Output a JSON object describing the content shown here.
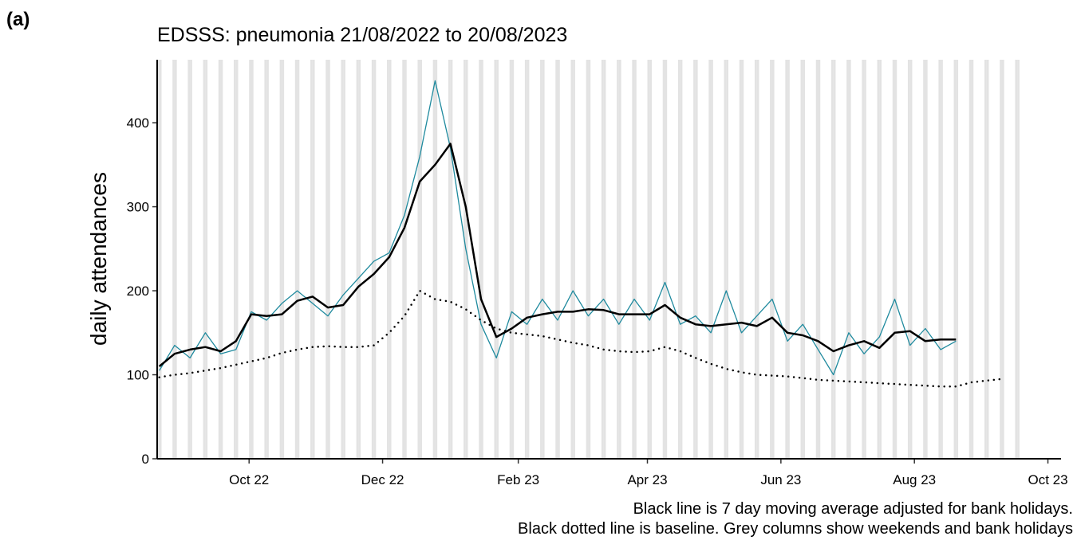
{
  "panel_label": "(a)",
  "chart_data": {
    "type": "line",
    "title": "EDSSS: pneumonia 21/08/2022 to 20/08/2023",
    "y_label": "daily attendances",
    "annotations": [
      "Black line is 7 day moving average adjusted for bank holidays.",
      "Black dotted line is baseline. Grey columns show weekends and bank holidays"
    ],
    "x": [
      "2022-08-21",
      "2022-08-28",
      "2022-09-04",
      "2022-09-11",
      "2022-09-18",
      "2022-09-25",
      "2022-10-02",
      "2022-10-09",
      "2022-10-16",
      "2022-10-23",
      "2022-10-30",
      "2022-11-06",
      "2022-11-13",
      "2022-11-20",
      "2022-11-27",
      "2022-12-04",
      "2022-12-11",
      "2022-12-18",
      "2022-12-25",
      "2023-01-01",
      "2023-01-08",
      "2023-01-15",
      "2023-01-22",
      "2023-01-29",
      "2023-02-05",
      "2023-02-12",
      "2023-02-19",
      "2023-02-26",
      "2023-03-05",
      "2023-03-12",
      "2023-03-19",
      "2023-03-26",
      "2023-04-02",
      "2023-04-09",
      "2023-04-16",
      "2023-04-23",
      "2023-04-30",
      "2023-05-07",
      "2023-05-14",
      "2023-05-21",
      "2023-05-28",
      "2023-06-04",
      "2023-06-11",
      "2023-06-18",
      "2023-06-25",
      "2023-07-02",
      "2023-07-09",
      "2023-07-16",
      "2023-07-23",
      "2023-07-30",
      "2023-08-06",
      "2023-08-13",
      "2023-08-20",
      "2023-08-27",
      "2023-09-03",
      "2023-09-10"
    ],
    "series": [
      {
        "color": "#1f8a9e",
        "style": "solid",
        "width": 1.3,
        "values": [
          105,
          135,
          120,
          150,
          125,
          130,
          175,
          165,
          185,
          200,
          185,
          170,
          195,
          215,
          235,
          245,
          290,
          360,
          450,
          370,
          250,
          160,
          120,
          175,
          160,
          190,
          165,
          200,
          170,
          190,
          160,
          190,
          165,
          210,
          160,
          170,
          150,
          200,
          150,
          170,
          190,
          140,
          160,
          130,
          100,
          150,
          125,
          145,
          190,
          135,
          155,
          130,
          140,
          null,
          null,
          null
        ]
      },
      {
        "color": "#000000",
        "style": "solid",
        "width": 2.5,
        "values": [
          110,
          125,
          130,
          133,
          128,
          140,
          172,
          170,
          172,
          188,
          193,
          180,
          183,
          205,
          220,
          240,
          275,
          330,
          350,
          375,
          300,
          190,
          145,
          155,
          168,
          172,
          175,
          175,
          178,
          177,
          172,
          172,
          172,
          183,
          168,
          160,
          158,
          160,
          162,
          158,
          168,
          150,
          147,
          140,
          128,
          135,
          140,
          132,
          150,
          152,
          140,
          142,
          142,
          null,
          null,
          null
        ]
      },
      {
        "color": "#000000",
        "style": "dotted",
        "width": 2.5,
        "values": [
          97,
          100,
          102,
          105,
          108,
          112,
          116,
          120,
          126,
          130,
          133,
          134,
          133,
          133,
          135,
          150,
          170,
          200,
          190,
          187,
          178,
          165,
          155,
          150,
          148,
          146,
          142,
          138,
          135,
          130,
          128,
          127,
          128,
          133,
          128,
          120,
          113,
          107,
          103,
          100,
          99,
          98,
          96,
          94,
          93,
          92,
          91,
          90,
          89,
          88,
          87,
          86,
          86,
          91,
          93,
          95
        ]
      }
    ],
    "xlim": [
      "2022-08-20",
      "2023-10-07"
    ],
    "xticks": [
      {
        "value": "2022-10-01",
        "label": "Oct 22"
      },
      {
        "value": "2022-12-01",
        "label": "Dec 22"
      },
      {
        "value": "2023-02-01",
        "label": "Feb 23"
      },
      {
        "value": "2023-04-01",
        "label": "Apr 23"
      },
      {
        "value": "2023-06-01",
        "label": "Jun 23"
      },
      {
        "value": "2023-08-01",
        "label": "Aug 23"
      },
      {
        "value": "2023-10-01",
        "label": "Oct 23"
      }
    ],
    "ylim": [
      0,
      475
    ],
    "yticks": [
      0,
      100,
      200,
      300,
      400
    ],
    "weekend_shading": {
      "from": "2022-08-20",
      "to": "2023-09-17",
      "color": "#e3e3e3"
    }
  }
}
